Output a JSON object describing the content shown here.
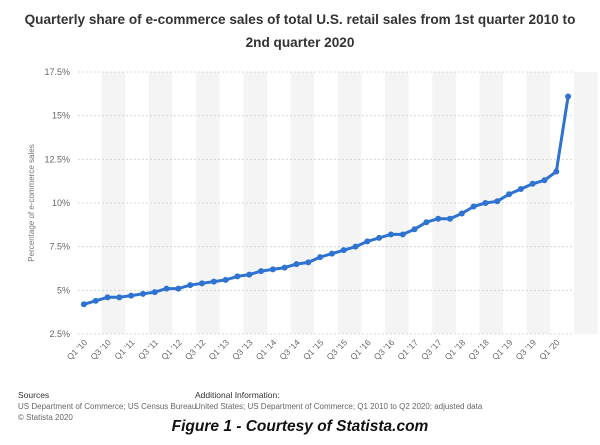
{
  "chart_data": {
    "type": "line",
    "title": "Quarterly share of e-commerce sales of total U.S. retail sales from 1st quarter 2010 to 2nd quarter 2020",
    "ylabel": "Percentage of e-commerce sales",
    "xlabel": "",
    "ylim": [
      2.5,
      17.5
    ],
    "yticks": [
      "2.5%",
      "5%",
      "7.5%",
      "10%",
      "12.5%",
      "15%",
      "17.5%"
    ],
    "grid": "horizontal dashed",
    "legend": "none",
    "color": "#2e72d2",
    "x_tick_labels": [
      "Q1 '10",
      "Q3 '10",
      "Q1 '11",
      "Q3 '11",
      "Q1 '12",
      "Q3 '12",
      "Q1 '13",
      "Q3 '13",
      "Q1 '14",
      "Q3 '14",
      "Q1 '15",
      "Q3 '15",
      "Q1 '16",
      "Q3 '16",
      "Q1 '17",
      "Q3 '17",
      "Q1 '18",
      "Q3 '18",
      "Q1 '19",
      "Q3 '19",
      "Q1 '20"
    ],
    "x": [
      "Q1 2010",
      "Q2 2010",
      "Q3 2010",
      "Q4 2010",
      "Q1 2011",
      "Q2 2011",
      "Q3 2011",
      "Q4 2011",
      "Q1 2012",
      "Q2 2012",
      "Q3 2012",
      "Q4 2012",
      "Q1 2013",
      "Q2 2013",
      "Q3 2013",
      "Q4 2013",
      "Q1 2014",
      "Q2 2014",
      "Q3 2014",
      "Q4 2014",
      "Q1 2015",
      "Q2 2015",
      "Q3 2015",
      "Q4 2015",
      "Q1 2016",
      "Q2 2016",
      "Q3 2016",
      "Q4 2016",
      "Q1 2017",
      "Q2 2017",
      "Q3 2017",
      "Q4 2017",
      "Q1 2018",
      "Q2 2018",
      "Q3 2018",
      "Q4 2018",
      "Q1 2019",
      "Q2 2019",
      "Q3 2019",
      "Q4 2019",
      "Q1 2020",
      "Q2 2020"
    ],
    "values": [
      4.2,
      4.4,
      4.6,
      4.6,
      4.7,
      4.8,
      4.9,
      5.1,
      5.1,
      5.3,
      5.4,
      5.5,
      5.6,
      5.8,
      5.9,
      6.1,
      6.2,
      6.3,
      6.5,
      6.6,
      6.9,
      7.1,
      7.3,
      7.5,
      7.8,
      8.0,
      8.2,
      8.2,
      8.5,
      8.9,
      9.1,
      9.1,
      9.4,
      9.8,
      10.0,
      10.1,
      10.5,
      10.8,
      11.1,
      11.3,
      11.8,
      16.1
    ]
  },
  "footer": {
    "sources_heading": "Sources",
    "sources_line1": "US Department of Commerce; US Census Bureau",
    "sources_line2": "© Statista 2020",
    "additional_heading": "Additional Information:",
    "additional_line1": "United States; US Department of Commerce; Q1 2010 to Q2 2020; adjusted data"
  },
  "caption": "Figure 1 - Courtesy of Statista.com"
}
